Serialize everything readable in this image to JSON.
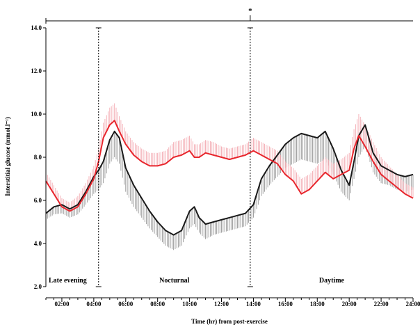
{
  "chart_data": {
    "type": "line",
    "title": "",
    "xlabel": "Time (hr) from post-exercise",
    "ylabel": "Interstitial glucose (mmol.l⁻¹)",
    "x_range_hours": [
      1,
      24
    ],
    "ylim": [
      2.0,
      14.0
    ],
    "y_ticks": [
      "2.0",
      "4.0",
      "6.0",
      "8.0",
      "10.0",
      "12.0",
      "14.0"
    ],
    "x_ticks": [
      {
        "x": 2,
        "label": "02:00"
      },
      {
        "x": 4,
        "label": "04:00"
      },
      {
        "x": 6,
        "label": "06:00"
      },
      {
        "x": 8,
        "label": "08:00"
      },
      {
        "x": 10,
        "label": "10:00"
      },
      {
        "x": 12,
        "label": "12:00"
      },
      {
        "x": 14,
        "label": "14:00"
      },
      {
        "x": 16,
        "label": "16:00"
      },
      {
        "x": 18,
        "label": "18:00"
      },
      {
        "x": 20,
        "label": "20:00"
      },
      {
        "x": 22,
        "label": "22:00"
      },
      {
        "x": 24,
        "label": "24:00"
      }
    ],
    "grid": false,
    "legend": "none",
    "periods": [
      {
        "label": "Late evening",
        "start": 1,
        "end": 4.3
      },
      {
        "label": "Nocturnal",
        "start": 4.3,
        "end": 13.8
      },
      {
        "label": "Daytime",
        "start": 13.8,
        "end": 24
      }
    ],
    "period_boundaries": [
      4.3,
      13.8
    ],
    "significance_marker": {
      "label": "*",
      "x": 13.8
    },
    "series": [
      {
        "color": "#1a1a1a",
        "error_color": "#8c8c8c",
        "error_direction": "down",
        "x": [
          1.0,
          1.5,
          2.0,
          2.5,
          3.0,
          3.5,
          4.0,
          4.3,
          4.6,
          5.0,
          5.3,
          5.6,
          6.0,
          6.5,
          7.0,
          7.5,
          8.0,
          8.5,
          9.0,
          9.5,
          10.0,
          10.3,
          10.6,
          11.0,
          11.5,
          12.0,
          12.5,
          13.0,
          13.5,
          14.0,
          14.5,
          15.0,
          15.5,
          16.0,
          16.5,
          17.0,
          17.5,
          18.0,
          18.5,
          19.0,
          19.5,
          20.0,
          20.3,
          20.6,
          21.0,
          21.5,
          22.0,
          22.5,
          23.0,
          23.5,
          24.0
        ],
        "values": [
          5.4,
          5.7,
          5.8,
          5.6,
          5.8,
          6.4,
          7.1,
          7.4,
          7.8,
          8.8,
          9.2,
          8.9,
          7.5,
          6.7,
          6.1,
          5.5,
          5.0,
          4.6,
          4.4,
          4.6,
          5.5,
          5.7,
          5.2,
          4.9,
          5.0,
          5.1,
          5.2,
          5.3,
          5.4,
          5.8,
          7.0,
          7.6,
          8.1,
          8.6,
          8.9,
          9.1,
          9.0,
          8.9,
          9.2,
          8.4,
          7.4,
          6.7,
          7.8,
          9.0,
          9.5,
          8.2,
          7.6,
          7.4,
          7.2,
          7.1,
          7.2
        ],
        "errors": [
          0.3,
          0.35,
          0.4,
          0.4,
          0.45,
          0.6,
          0.8,
          0.9,
          1.0,
          1.1,
          1.2,
          1.2,
          1.1,
          1.0,
          0.9,
          0.8,
          0.7,
          0.7,
          0.7,
          0.7,
          0.8,
          0.8,
          0.7,
          0.7,
          0.6,
          0.6,
          0.6,
          0.6,
          0.6,
          0.6,
          0.8,
          0.9,
          1.0,
          1.1,
          1.2,
          1.2,
          1.2,
          1.2,
          1.3,
          1.2,
          1.0,
          0.7,
          0.8,
          1.0,
          1.0,
          0.9,
          0.8,
          0.7,
          0.7,
          0.7,
          0.7
        ]
      },
      {
        "color": "#e8262d",
        "error_color": "#f2a0a8",
        "error_direction": "up",
        "x": [
          1.0,
          1.5,
          2.0,
          2.5,
          3.0,
          3.5,
          4.0,
          4.3,
          4.6,
          5.0,
          5.3,
          5.6,
          6.0,
          6.5,
          7.0,
          7.5,
          8.0,
          8.5,
          9.0,
          9.5,
          10.0,
          10.3,
          10.6,
          11.0,
          11.5,
          12.0,
          12.5,
          13.0,
          13.5,
          14.0,
          14.5,
          15.0,
          15.5,
          16.0,
          16.5,
          17.0,
          17.5,
          18.0,
          18.5,
          19.0,
          19.5,
          20.0,
          20.3,
          20.6,
          21.0,
          21.5,
          22.0,
          22.5,
          23.0,
          23.5,
          24.0
        ],
        "values": [
          6.9,
          6.3,
          5.7,
          5.5,
          5.7,
          6.3,
          7.0,
          7.8,
          8.9,
          9.5,
          9.7,
          9.2,
          8.6,
          8.1,
          7.8,
          7.6,
          7.6,
          7.7,
          8.0,
          8.1,
          8.3,
          8.0,
          8.0,
          8.2,
          8.1,
          8.0,
          7.9,
          8.0,
          8.1,
          8.3,
          8.1,
          7.9,
          7.7,
          7.2,
          6.9,
          6.3,
          6.5,
          6.9,
          7.3,
          7.0,
          7.2,
          7.4,
          8.4,
          9.0,
          8.5,
          7.8,
          7.2,
          6.9,
          6.6,
          6.3,
          6.1
        ],
        "errors": [
          0.4,
          0.4,
          0.4,
          0.4,
          0.5,
          0.5,
          0.6,
          0.6,
          0.7,
          0.8,
          0.8,
          0.7,
          0.6,
          0.6,
          0.6,
          0.6,
          0.6,
          0.6,
          0.7,
          0.7,
          0.7,
          0.6,
          0.6,
          0.6,
          0.6,
          0.5,
          0.5,
          0.5,
          0.5,
          0.6,
          0.6,
          0.6,
          0.6,
          0.6,
          0.6,
          0.7,
          0.7,
          0.7,
          0.7,
          0.7,
          0.7,
          0.8,
          0.9,
          1.0,
          1.0,
          0.9,
          0.8,
          0.7,
          0.6,
          0.5,
          0.5
        ]
      }
    ]
  }
}
